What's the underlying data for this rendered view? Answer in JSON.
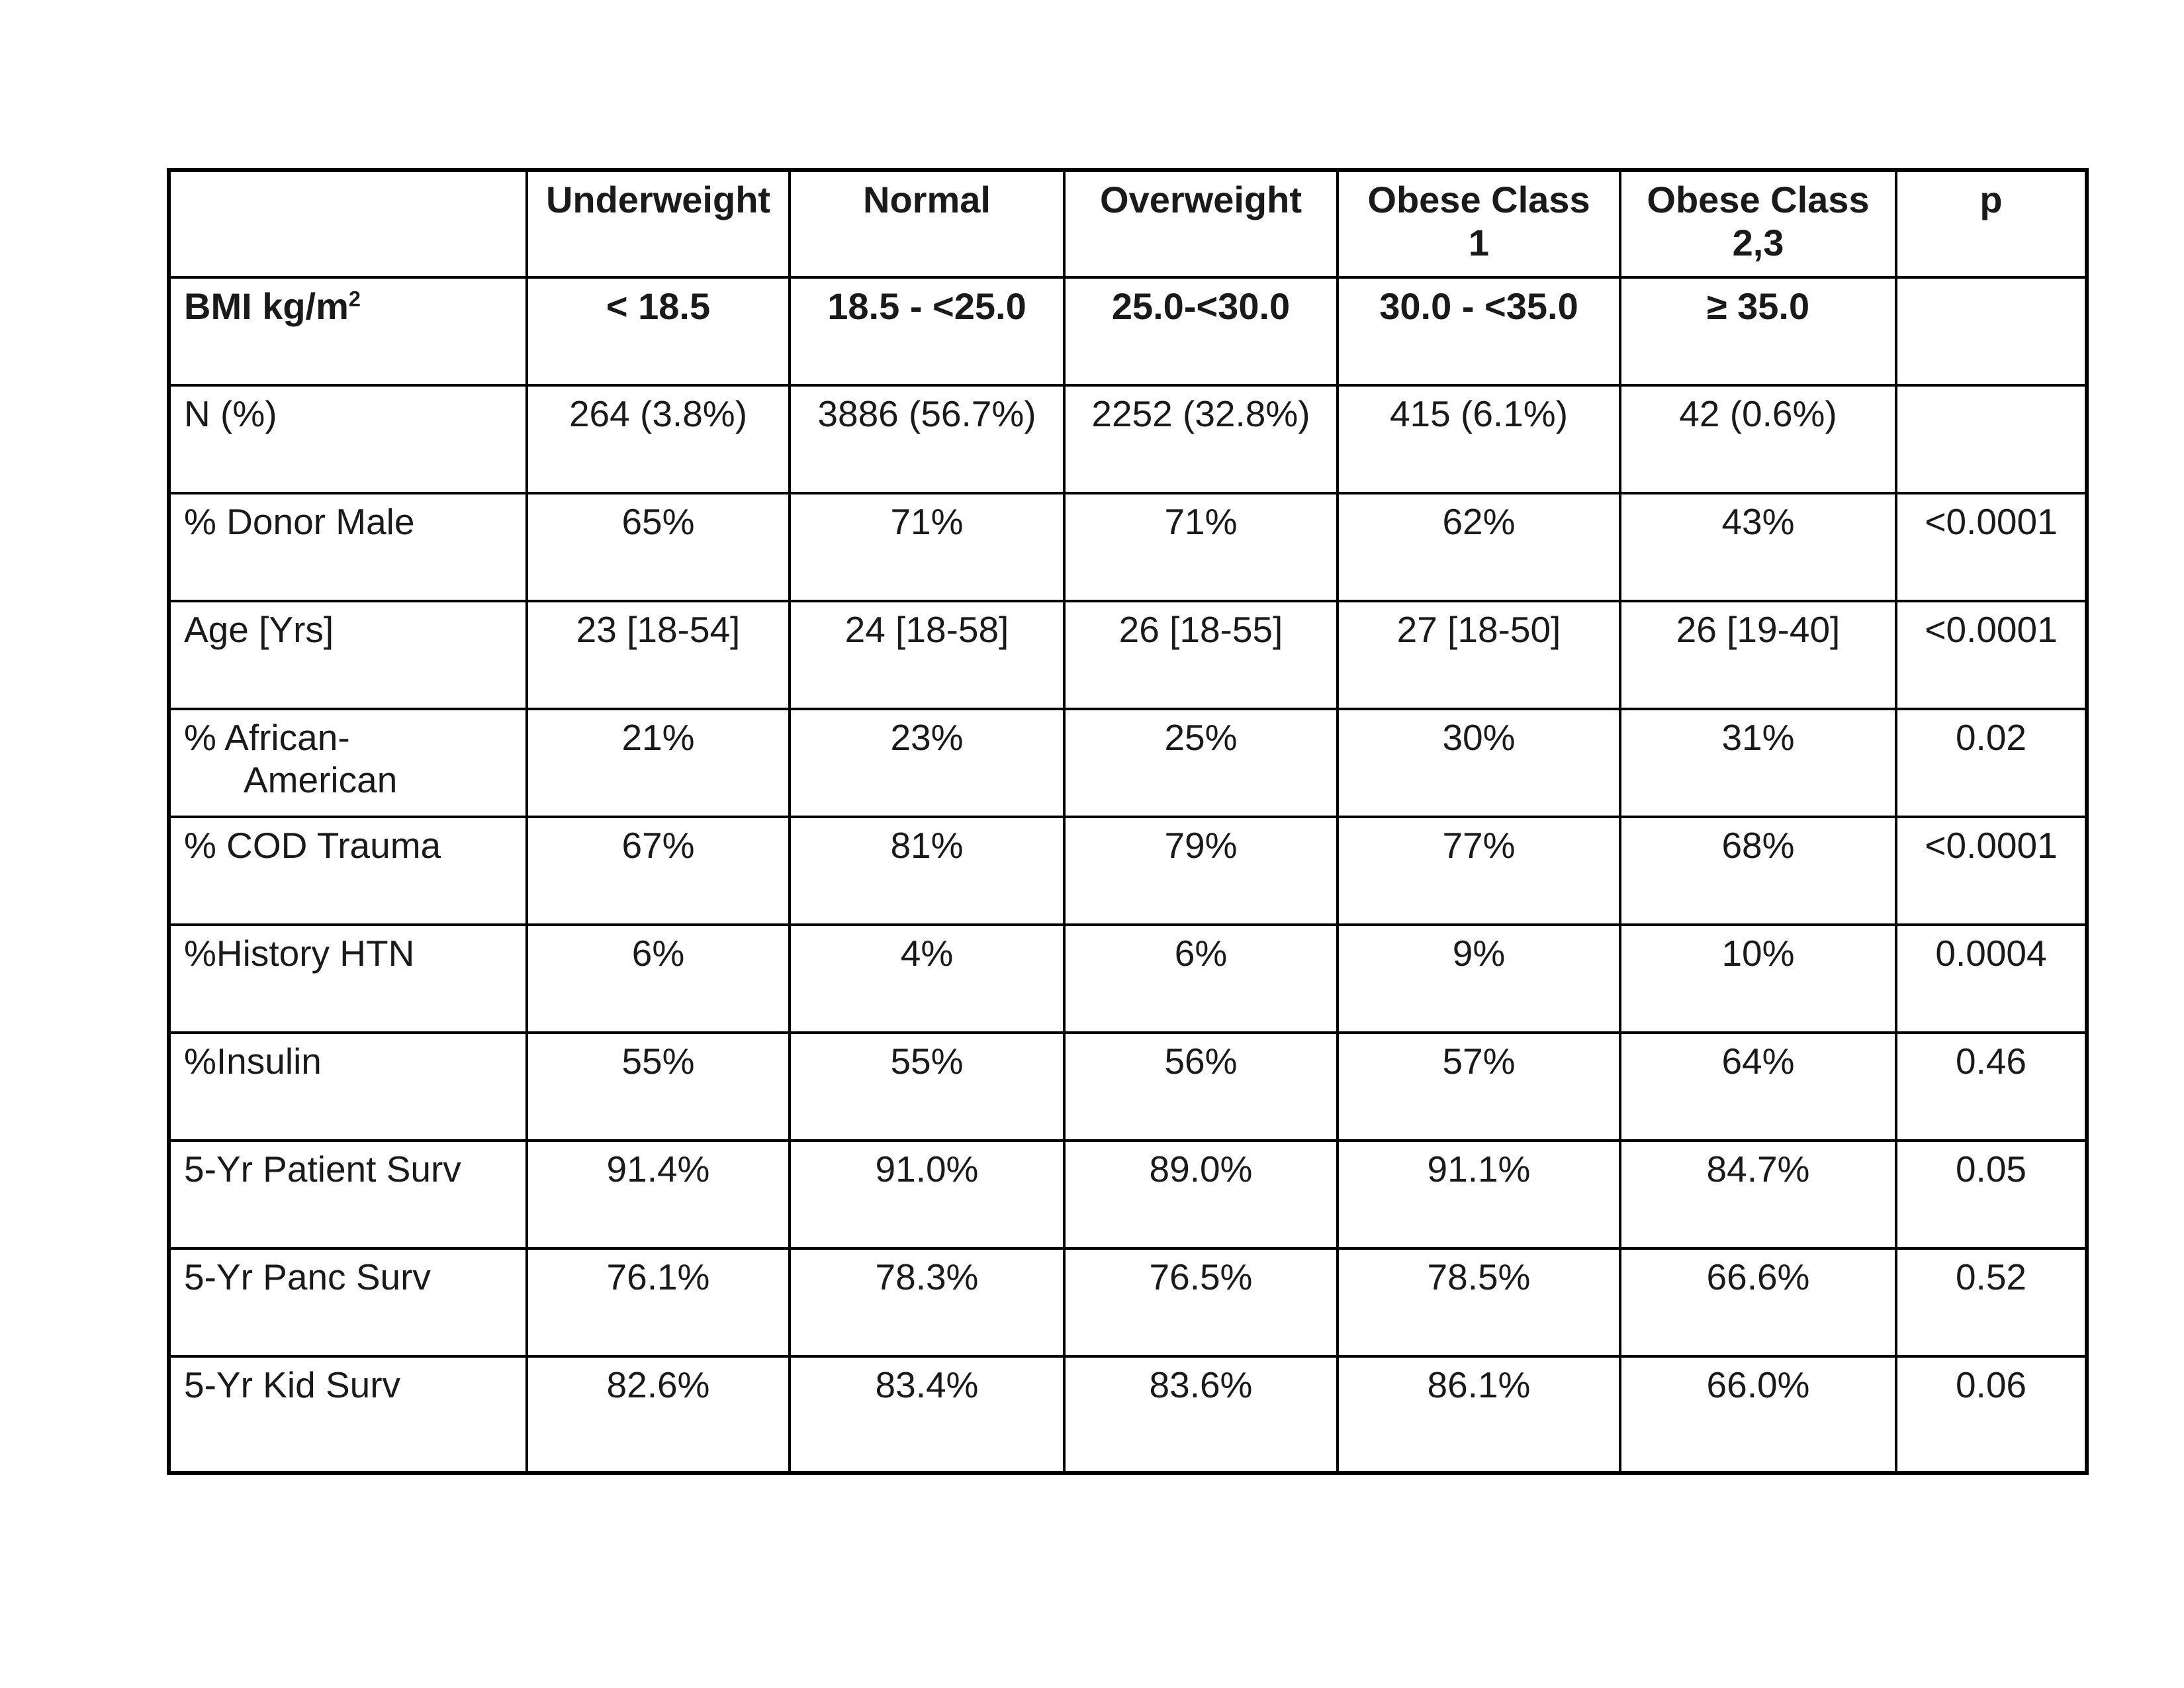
{
  "table": {
    "columns": [
      {
        "label": ""
      },
      {
        "label": "Underweight"
      },
      {
        "label": "Normal"
      },
      {
        "label": "Overweight"
      },
      {
        "label": "Obese Class\n1"
      },
      {
        "label": "Obese Class\n2,3"
      },
      {
        "label": "p"
      }
    ],
    "bmi_row": {
      "label": "BMI kg/m",
      "superscript": "2",
      "values": [
        "< 18.5",
        "18.5 - <25.0",
        "25.0-<30.0",
        "30.0 - <35.0",
        "≥ 35.0",
        ""
      ]
    },
    "rows": [
      {
        "label": "N (%)",
        "values": [
          "264 (3.8%)",
          "3886 (56.7%)",
          "2252 (32.8%)",
          "415 (6.1%)",
          "42 (0.6%)",
          ""
        ]
      },
      {
        "label": "% Donor Male",
        "values": [
          "65%",
          "71%",
          "71%",
          "62%",
          "43%",
          "<0.0001"
        ]
      },
      {
        "label": "Age [Yrs]",
        "values": [
          "23 [18-54]",
          "24 [18-58]",
          "26 [18-55]",
          "27 [18-50]",
          "26 [19-40]",
          "<0.0001"
        ]
      },
      {
        "label": "% African-\nAmerican",
        "values": [
          "21%",
          "23%",
          "25%",
          "30%",
          "31%",
          "0.02"
        ]
      },
      {
        "label": "% COD Trauma",
        "values": [
          "67%",
          "81%",
          "79%",
          "77%",
          "68%",
          "<0.0001"
        ]
      },
      {
        "label": "%History HTN",
        "values": [
          "6%",
          "4%",
          "6%",
          "9%",
          "10%",
          "0.0004"
        ]
      },
      {
        "label": "%Insulin",
        "values": [
          "55%",
          "55%",
          "56%",
          "57%",
          "64%",
          "0.46"
        ]
      },
      {
        "label": "5-Yr Patient Surv",
        "values": [
          "91.4%",
          "91.0%",
          "89.0%",
          "91.1%",
          "84.7%",
          "0.05"
        ]
      },
      {
        "label": "5-Yr Panc Surv",
        "values": [
          "76.1%",
          "78.3%",
          "76.5%",
          "78.5%",
          "66.6%",
          "0.52"
        ]
      },
      {
        "label": "5-Yr Kid Surv",
        "values": [
          "82.6%",
          "83.4%",
          "83.6%",
          "86.1%",
          "66.0%",
          "0.06"
        ]
      }
    ]
  },
  "colors": {
    "text": "#1a1a1a",
    "border": "#000000",
    "background": "#ffffff"
  }
}
